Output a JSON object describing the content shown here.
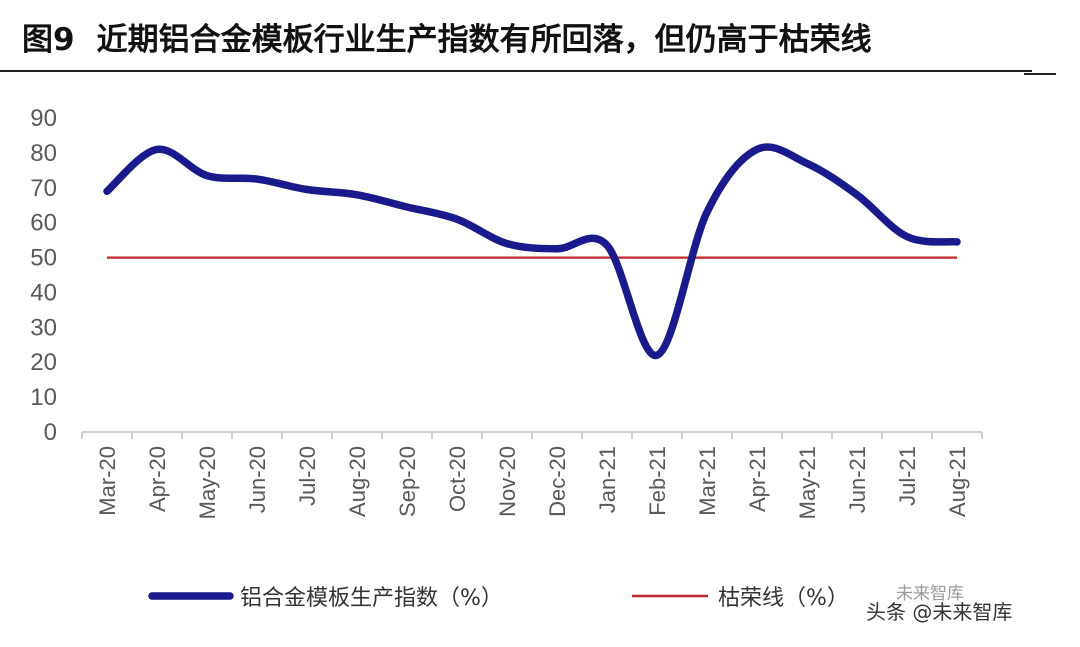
{
  "figure": {
    "number": "图9",
    "title": "近期铝合金模板行业生产指数有所回落，但仍高于枯荣线"
  },
  "chart_data": {
    "type": "line",
    "categories": [
      "Mar-20",
      "Apr-20",
      "May-20",
      "Jun-20",
      "Jul-20",
      "Aug-20",
      "Sep-20",
      "Oct-20",
      "Nov-20",
      "Dec-20",
      "Jan-21",
      "Feb-21",
      "Mar-21",
      "Apr-21",
      "May-21",
      "Jun-21",
      "Jul-21",
      "Aug-21"
    ],
    "series": [
      {
        "name": "铝合金模板生产指数（%）",
        "color": "#1a1a8c",
        "style": "smooth-thick",
        "values": [
          69,
          81,
          73.5,
          72.5,
          69.5,
          68,
          64.5,
          61,
          54,
          52.5,
          53.5,
          22,
          63,
          81,
          77,
          68,
          56,
          54.5
        ]
      },
      {
        "name": "枯荣线（%）",
        "color": "#c0292b",
        "style": "thin",
        "values": [
          50,
          50,
          50,
          50,
          50,
          50,
          50,
          50,
          50,
          50,
          50,
          50,
          50,
          50,
          50,
          50,
          50,
          50
        ]
      }
    ],
    "yticks": [
      0,
      10,
      20,
      30,
      40,
      50,
      60,
      70,
      80,
      90
    ],
    "ylim": [
      0,
      90
    ],
    "legend": "bottom",
    "grid": false,
    "xlabel": "",
    "ylabel": ""
  },
  "watermark": {
    "text": "头条 @未来智库",
    "brand": "未来智库"
  }
}
